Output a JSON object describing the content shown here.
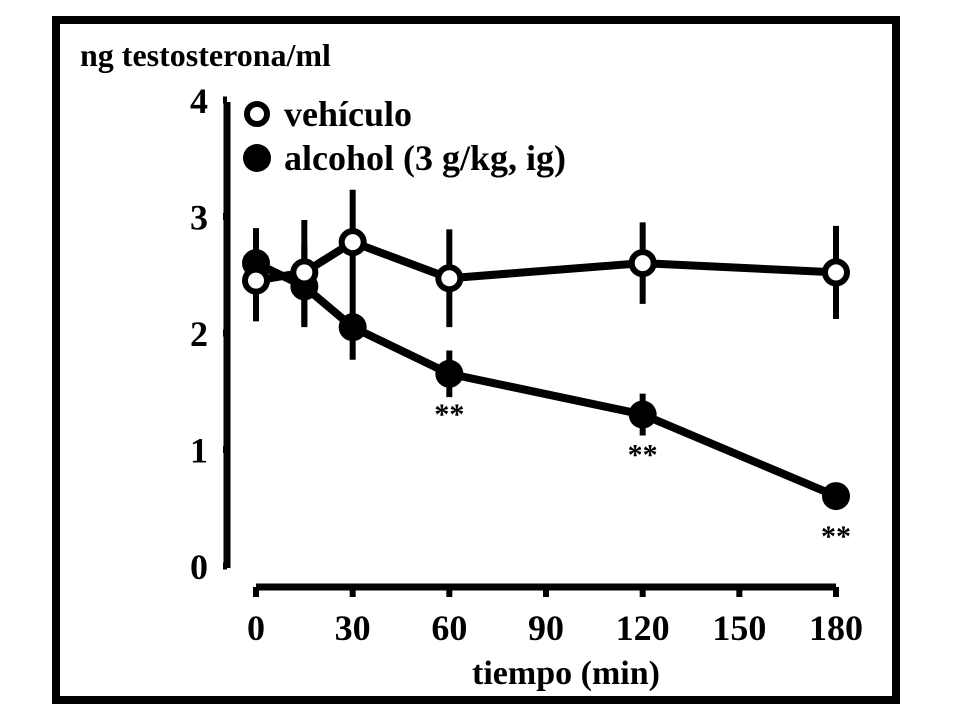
{
  "chart_data": {
    "type": "line",
    "ylabel": "ng testosterona/ml",
    "xlabel": "tiempo (min)",
    "x_ticks": [
      "0",
      "30",
      "60",
      "90",
      "120",
      "150",
      "180"
    ],
    "y_ticks": [
      "0",
      "1",
      "2",
      "3",
      "4"
    ],
    "xlim": [
      0,
      180
    ],
    "ylim": [
      0,
      4
    ],
    "grid": false,
    "legend_position": "top-left",
    "significance_marker": "**",
    "series": [
      {
        "name": "vehículo",
        "marker": "open-circle",
        "color": "#000000",
        "points": [
          {
            "x": 0,
            "y": 2.45,
            "err": 0.35
          },
          {
            "x": 15,
            "y": 2.52,
            "err": 0.45
          },
          {
            "x": 30,
            "y": 2.78,
            "err": 0.45
          },
          {
            "x": 60,
            "y": 2.47,
            "err": 0.42
          },
          {
            "x": 120,
            "y": 2.6,
            "err": 0.35
          },
          {
            "x": 180,
            "y": 2.52,
            "err": 0.4
          }
        ]
      },
      {
        "name": "alcohol (3 g/kg, ig)",
        "marker": "filled-circle",
        "color": "#000000",
        "points": [
          {
            "x": 0,
            "y": 2.6,
            "err": 0.3
          },
          {
            "x": 15,
            "y": 2.4,
            "err": 0.35
          },
          {
            "x": 30,
            "y": 2.05,
            "err": 0.28,
            "sig": false
          },
          {
            "x": 60,
            "y": 1.65,
            "err": 0.2,
            "sig": true
          },
          {
            "x": 120,
            "y": 1.3,
            "err": 0.18,
            "sig": true
          },
          {
            "x": 180,
            "y": 0.6,
            "err": 0.0,
            "sig": true
          }
        ]
      }
    ]
  }
}
